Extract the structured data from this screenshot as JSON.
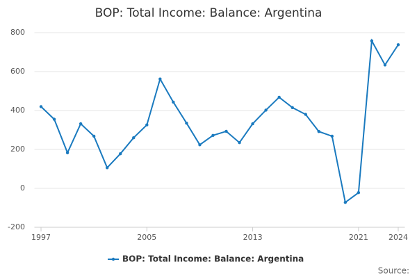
{
  "chart_data": {
    "type": "line",
    "title": "BOP: Total Income: Balance: Argentina",
    "x": [
      1997,
      1998,
      1999,
      2000,
      2001,
      2002,
      2003,
      2004,
      2005,
      2006,
      2007,
      2008,
      2009,
      2010,
      2011,
      2012,
      2013,
      2014,
      2015,
      2016,
      2017,
      2018,
      2019,
      2020,
      2021,
      2022,
      2023,
      2024
    ],
    "series": [
      {
        "name": "BOP: Total Income: Balance: Argentina",
        "color": "#1a7abf",
        "values": [
          420,
          355,
          183,
          332,
          268,
          106,
          178,
          260,
          326,
          562,
          443,
          335,
          224,
          272,
          293,
          235,
          332,
          402,
          468,
          415,
          380,
          292,
          268,
          -72,
          -22,
          758,
          634,
          738
        ]
      }
    ],
    "xlim": [
      1996.5,
      2024.5
    ],
    "xticks": [
      1997,
      2005,
      2013,
      2021,
      2024
    ],
    "ylim": [
      -200,
      800
    ],
    "yticks": [
      -200,
      0,
      200,
      400,
      600,
      800
    ],
    "grid": true,
    "source": "Source:"
  }
}
